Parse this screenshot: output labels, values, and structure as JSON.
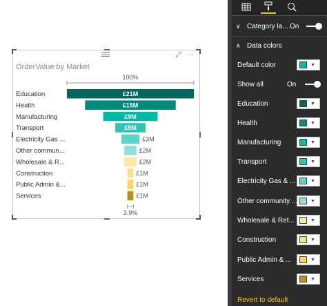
{
  "visual": {
    "title": "OrderValue by Market",
    "top_percent": "100%",
    "bottom_percent": "3.9%"
  },
  "chart_data": {
    "type": "bar",
    "subtype": "funnel",
    "title": "OrderValue by Market",
    "categories": [
      "Education",
      "Health",
      "Manufacturing",
      "Transport",
      "Electricity Gas ...",
      "Other commun...",
      "Wholesale & R...",
      "Construction",
      "Public Admin &...",
      "Services"
    ],
    "values": [
      21,
      15,
      9,
      5,
      3,
      2,
      2,
      1,
      1,
      1
    ],
    "value_labels": [
      "£21M",
      "£15M",
      "£9M",
      "£5M",
      "£3M",
      "£2M",
      "£2M",
      "£1M",
      "£1M",
      "£1M"
    ],
    "unit": "£M",
    "colors": [
      "#01665e",
      "#01897b",
      "#01b8aa",
      "#2ec4b6",
      "#5ad3c8",
      "#8ddfd7",
      "#fde9a3",
      "#fbe28a",
      "#f7d760",
      "#b8921a"
    ],
    "top_percent": "100%",
    "bottom_percent": "3.9%"
  },
  "pane": {
    "tabs": [
      {
        "name": "fields-tab",
        "icon": "▦"
      },
      {
        "name": "format-tab",
        "icon": "🖌"
      },
      {
        "name": "analytics-tab",
        "icon": "🔍"
      }
    ],
    "category_labels": {
      "label": "Category la...",
      "state": "On"
    },
    "data_colors": {
      "label": "Data colors"
    },
    "default_color": {
      "label": "Default color",
      "color": "#01b8aa"
    },
    "show_all": {
      "label": "Show all",
      "state": "On"
    },
    "items": [
      {
        "label": "Education",
        "color": "#01665e"
      },
      {
        "label": "Health",
        "color": "#01897b"
      },
      {
        "label": "Manufacturing",
        "color": "#01b8aa"
      },
      {
        "label": "Transport",
        "color": "#2ec4b6"
      },
      {
        "label": "Electricity Gas & ...",
        "color": "#5ad3c8"
      },
      {
        "label": "Other community ...",
        "color": "#8ddfd7"
      },
      {
        "label": "Wholesale & Ret...",
        "color": "#fde9a3"
      },
      {
        "label": "Construction",
        "color": "#fbe28a"
      },
      {
        "label": "Public Admin & ...",
        "color": "#f7d760"
      },
      {
        "label": "Services",
        "color": "#b8921a"
      }
    ],
    "revert": "Revert to default"
  }
}
